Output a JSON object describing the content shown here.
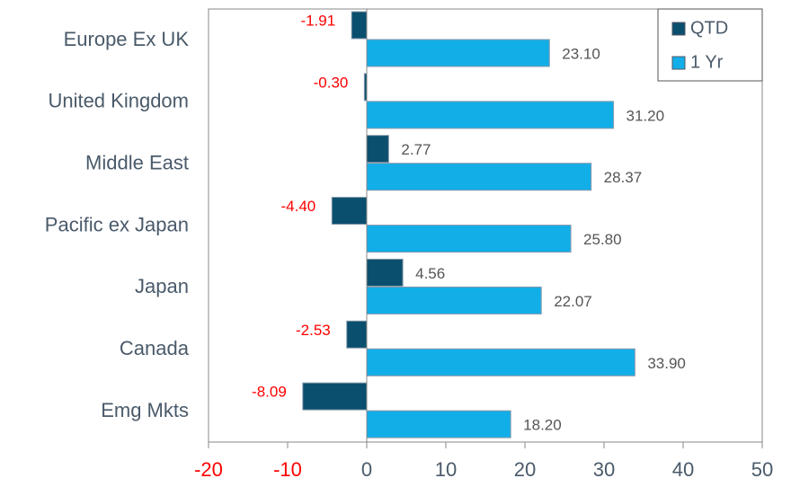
{
  "chart_data": {
    "type": "hbar",
    "categories": [
      "Europe Ex UK",
      "United Kingdom",
      "Middle East",
      "Pacific ex Japan",
      "Japan",
      "Canada",
      "Emg Mkts"
    ],
    "series": [
      {
        "name": "QTD",
        "color": "#0a4f6e",
        "values": [
          -1.91,
          -0.3,
          2.77,
          -4.4,
          4.56,
          -2.53,
          -8.09
        ],
        "value_labels": [
          "-1.91",
          "-0.30",
          "2.77",
          "-4.40",
          "4.56",
          "-2.53",
          "-8.09"
        ]
      },
      {
        "name": "1 Yr",
        "color": "#12aee8",
        "values": [
          23.1,
          31.2,
          28.37,
          25.8,
          22.07,
          33.9,
          18.2
        ],
        "value_labels": [
          "23.10",
          "31.20",
          "28.37",
          "25.80",
          "22.07",
          "33.90",
          "18.20"
        ]
      }
    ],
    "xlim": [
      -20,
      50
    ],
    "xticks": [
      -20,
      -10,
      0,
      10,
      20,
      30,
      40,
      50
    ],
    "negative_color": "#ff0000",
    "legend": "upper right"
  }
}
